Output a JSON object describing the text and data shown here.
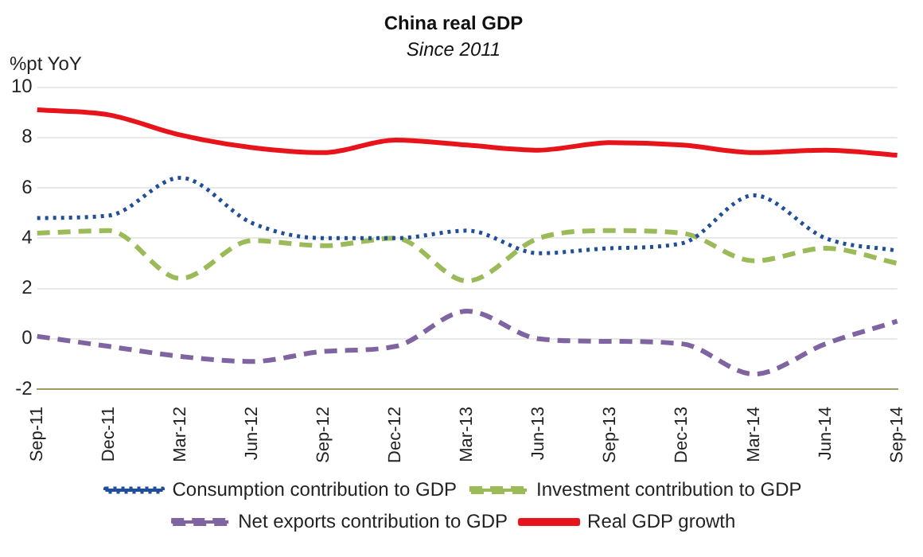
{
  "chart_data": {
    "type": "line",
    "title": "China real GDP",
    "subtitle": "Since 2011",
    "ylabel": "%pt YoY",
    "categories": [
      "Sep-11",
      "Dec-11",
      "Mar-12",
      "Jun-12",
      "Sep-12",
      "Dec-12",
      "Mar-13",
      "Jun-13",
      "Sep-13",
      "Dec-13",
      "Mar-14",
      "Jun-14",
      "Sep-14"
    ],
    "series": [
      {
        "name": "Consumption contribution to GDP",
        "color": "#1f4e9a",
        "line_style": "dotted",
        "values": [
          4.8,
          4.9,
          6.4,
          4.6,
          4.0,
          4.0,
          4.3,
          3.4,
          3.6,
          3.8,
          5.7,
          4.0,
          3.5
        ]
      },
      {
        "name": "Investment contribution to GDP",
        "color": "#9bbb59",
        "line_style": "dashed",
        "values": [
          4.2,
          4.3,
          2.4,
          3.9,
          3.7,
          4.0,
          2.3,
          4.0,
          4.3,
          4.2,
          3.1,
          3.6,
          3.0
        ]
      },
      {
        "name": "Net exports contribution to GDP",
        "color": "#8064a2",
        "line_style": "dashed",
        "values": [
          0.1,
          -0.3,
          -0.7,
          -0.9,
          -0.5,
          -0.3,
          1.1,
          0.0,
          -0.1,
          -0.2,
          -1.4,
          -0.2,
          0.7
        ]
      },
      {
        "name": "Real GDP growth",
        "color": "#e8141b",
        "line_style": "solid",
        "values": [
          9.1,
          8.9,
          8.1,
          7.6,
          7.4,
          7.9,
          7.7,
          7.5,
          7.8,
          7.7,
          7.4,
          7.5,
          7.3
        ]
      }
    ],
    "ylim": [
      -2,
      10
    ],
    "yticks": [
      -2,
      0,
      2,
      4,
      6,
      8,
      10
    ],
    "grid": "y",
    "legend": "bottom",
    "marker": "none"
  }
}
